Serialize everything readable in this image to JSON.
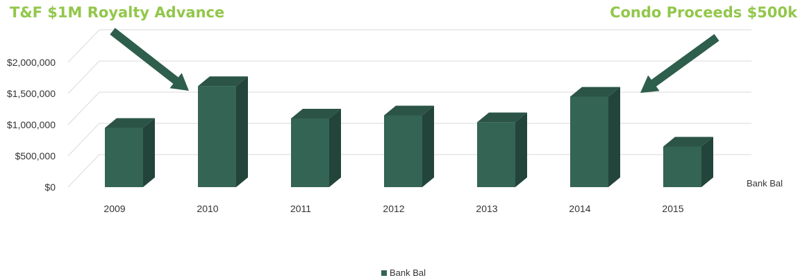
{
  "annotations": {
    "left": "T&F $1M Royalty Advance",
    "right": "Condo Proceeds $500k"
  },
  "colors": {
    "bar_front": "#346454",
    "bar_side": "#23443a",
    "bar_top": "#2b5447",
    "arrow": "#2e5e4c",
    "annotation": "#92c74a",
    "grid": "#d9d9d9"
  },
  "chart_data": {
    "type": "bar",
    "title": "",
    "xlabel": "",
    "ylabel": "",
    "categories": [
      "2009",
      "2010",
      "2011",
      "2012",
      "2013",
      "2014",
      "2015"
    ],
    "series": [
      {
        "name": "Bank Bal",
        "values": [
          950000,
          1620000,
          1100000,
          1150000,
          1040000,
          1450000,
          650000
        ]
      }
    ],
    "ylim": [
      0,
      2000000
    ],
    "y_ticks": [
      "$0",
      "$500,000",
      "$1,000,000",
      "$1,500,000",
      "$2,000,000"
    ],
    "grid": true,
    "legend": {
      "position": "bottom",
      "label": "Bank Bal"
    },
    "series_label": "Bank Bal"
  }
}
